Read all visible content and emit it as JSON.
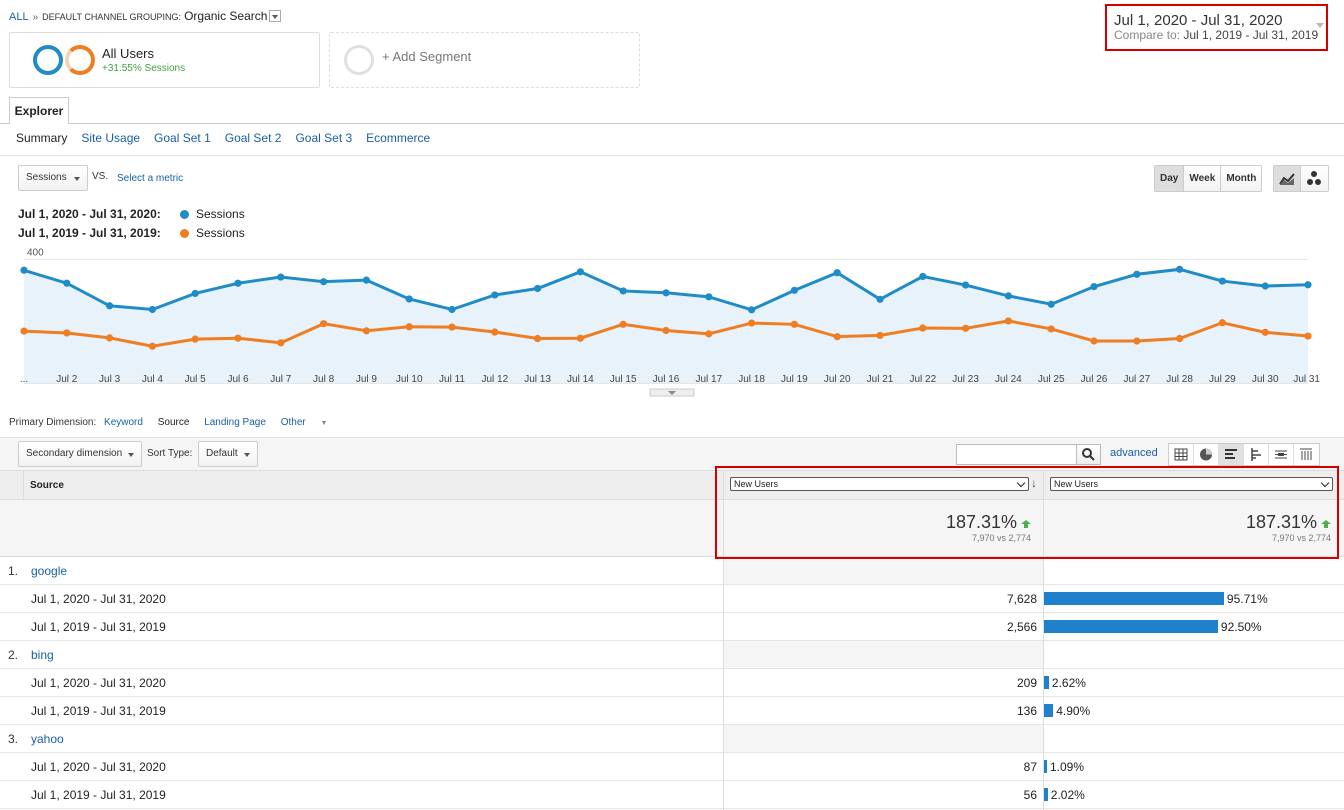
{
  "breadcrumb": {
    "all": "ALL",
    "sep": "»",
    "key": "DEFAULT CHANNEL GROUPING:",
    "value": "Organic Search"
  },
  "segments": {
    "all_users": "All Users",
    "all_users_sub": "+31.55% Sessions",
    "add_segment": "+ Add Segment"
  },
  "date_range": {
    "main": "Jul 1, 2020 - Jul 31, 2020",
    "compare_prefix": "Compare to:",
    "compare_range": "Jul 1, 2019 - Jul 31, 2019"
  },
  "tabs": {
    "explorer": "Explorer",
    "subtabs": [
      "Summary",
      "Site Usage",
      "Goal Set 1",
      "Goal Set 2",
      "Goal Set 3",
      "Ecommerce"
    ]
  },
  "metric_bar": {
    "metric": "Sessions",
    "vs": "VS.",
    "select_metric": "Select a metric",
    "periods": [
      "Day",
      "Week",
      "Month"
    ],
    "selected_period": "Day"
  },
  "legend": [
    {
      "range": "Jul 1, 2020 - Jul 31, 2020:",
      "series": "Sessions",
      "color": "#1f8cc7"
    },
    {
      "range": "Jul 1, 2019 - Jul 31, 2019:",
      "series": "Sessions",
      "color": "#ef7d22"
    }
  ],
  "chart_data": {
    "type": "line",
    "x": [
      "...",
      "Jul 2",
      "Jul 3",
      "Jul 4",
      "Jul 5",
      "Jul 6",
      "Jul 7",
      "Jul 8",
      "Jul 9",
      "Jul 10",
      "Jul 11",
      "Jul 12",
      "Jul 13",
      "Jul 14",
      "Jul 15",
      "Jul 16",
      "Jul 17",
      "Jul 18",
      "Jul 19",
      "Jul 20",
      "Jul 21",
      "Jul 22",
      "Jul 23",
      "Jul 24",
      "Jul 25",
      "Jul 26",
      "Jul 27",
      "Jul 28",
      "Jul 29",
      "Jul 30",
      "Jul 31"
    ],
    "yticks": [
      400,
      200
    ],
    "ylim": [
      0,
      450
    ],
    "series": [
      {
        "values": [
          365,
          323,
          250,
          238,
          290,
          323,
          343,
          328,
          333,
          272,
          238,
          285,
          306,
          360,
          298,
          292,
          279,
          237,
          300,
          357,
          271,
          345,
          317,
          282,
          255,
          312,
          352,
          368,
          330,
          314,
          318
        ],
        "color": "#1f8cc7"
      },
      {
        "values": [
          168,
          162,
          146,
          119,
          142,
          145,
          130,
          192,
          169,
          182,
          181,
          165,
          144,
          145,
          190,
          170,
          159,
          194,
          190,
          150,
          154,
          178,
          177,
          201,
          175,
          136,
          136,
          144,
          195,
          164,
          152
        ],
        "color": "#ef7d22"
      }
    ]
  },
  "primary_dimension": {
    "label": "Primary Dimension:",
    "options": [
      "Keyword",
      "Source",
      "Landing Page",
      "Other"
    ],
    "selected": "Source"
  },
  "toolbar": {
    "secondary_dimension": "Secondary dimension",
    "sort_type_label": "Sort Type:",
    "sort_type": "Default",
    "advanced": "advanced"
  },
  "table": {
    "source_header": "Source",
    "col1_metric": "New Users",
    "col2_metric": "New Users",
    "summary": {
      "pct": "187.31%",
      "sub": "7,970 vs 2,774"
    },
    "groups": [
      {
        "index": "1.",
        "source": "google",
        "rows": [
          {
            "period": "Jul 1, 2020 - Jul 31, 2020",
            "value": "7,628",
            "pct": "95.71%",
            "share": 95.71
          },
          {
            "period": "Jul 1, 2019 - Jul 31, 2019",
            "value": "2,566",
            "pct": "92.50%",
            "share": 92.5
          }
        ]
      },
      {
        "index": "2.",
        "source": "bing",
        "rows": [
          {
            "period": "Jul 1, 2020 - Jul 31, 2020",
            "value": "209",
            "pct": "2.62%",
            "share": 2.62
          },
          {
            "period": "Jul 1, 2019 - Jul 31, 2019",
            "value": "136",
            "pct": "4.90%",
            "share": 4.9
          }
        ]
      },
      {
        "index": "3.",
        "source": "yahoo",
        "rows": [
          {
            "period": "Jul 1, 2020 - Jul 31, 2020",
            "value": "87",
            "pct": "1.09%",
            "share": 1.09
          },
          {
            "period": "Jul 1, 2019 - Jul 31, 2019",
            "value": "56",
            "pct": "2.02%",
            "share": 2.02
          }
        ]
      }
    ]
  }
}
